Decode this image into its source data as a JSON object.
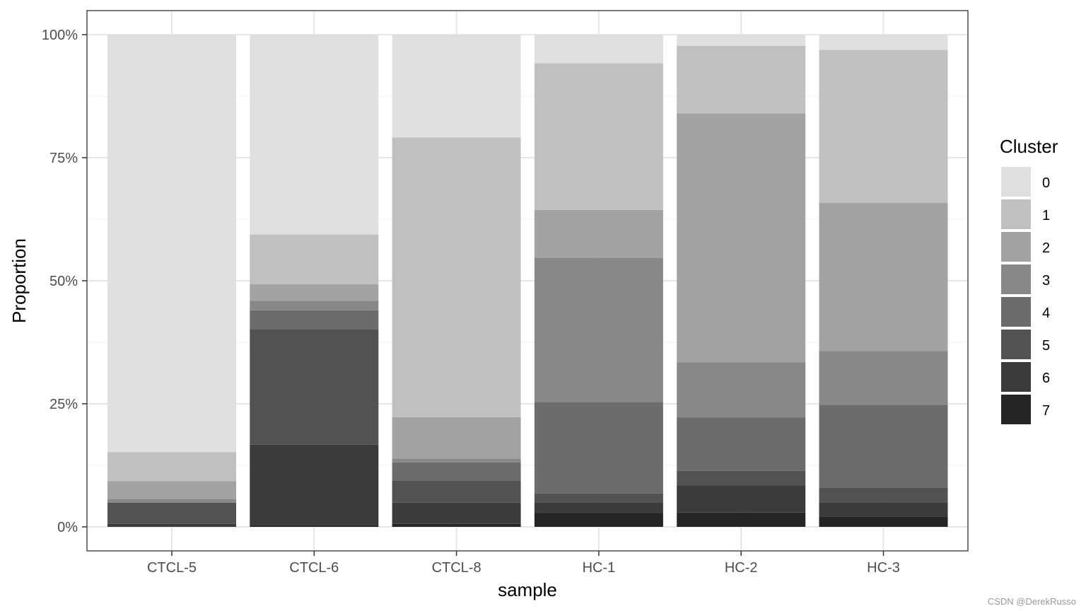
{
  "chart_data": {
    "type": "bar",
    "stacked": true,
    "normalized": true,
    "xlabel": "sample",
    "ylabel": "Proportion",
    "ylim": [
      0,
      1
    ],
    "yticks": [
      0,
      0.25,
      0.5,
      0.75,
      1.0
    ],
    "ytick_labels": [
      "0%",
      "25%",
      "50%",
      "75%",
      "100%"
    ],
    "grid": true,
    "legend_title": "Cluster",
    "legend_position": "right",
    "categories": [
      "CTCL-5",
      "CTCL-6",
      "CTCL-8",
      "HC-1",
      "HC-2",
      "HC-3"
    ],
    "series": [
      {
        "name": "0",
        "color": "#e0e0e0",
        "values": [
          0.848,
          0.406,
          0.209,
          0.058,
          0.023,
          0.031
        ]
      },
      {
        "name": "1",
        "color": "#c0c0c0",
        "values": [
          0.059,
          0.101,
          0.568,
          0.298,
          0.137,
          0.311
        ]
      },
      {
        "name": "2",
        "color": "#a3a3a3",
        "values": [
          0.036,
          0.034,
          0.084,
          0.097,
          0.506,
          0.301
        ]
      },
      {
        "name": "3",
        "color": "#888888",
        "values": [
          0.008,
          0.019,
          0.008,
          0.293,
          0.112,
          0.109
        ]
      },
      {
        "name": "4",
        "color": "#6c6c6c",
        "values": [
          0.0,
          0.038,
          0.037,
          0.186,
          0.108,
          0.169
        ]
      },
      {
        "name": "5",
        "color": "#525252",
        "values": [
          0.043,
          0.235,
          0.045,
          0.018,
          0.03,
          0.029
        ]
      },
      {
        "name": "6",
        "color": "#3b3b3b",
        "values": [
          0.006,
          0.163,
          0.043,
          0.022,
          0.055,
          0.029
        ]
      },
      {
        "name": "7",
        "color": "#252525",
        "values": [
          0.0,
          0.004,
          0.006,
          0.028,
          0.029,
          0.021
        ]
      }
    ]
  },
  "watermark": "CSDN @DerekRusso"
}
